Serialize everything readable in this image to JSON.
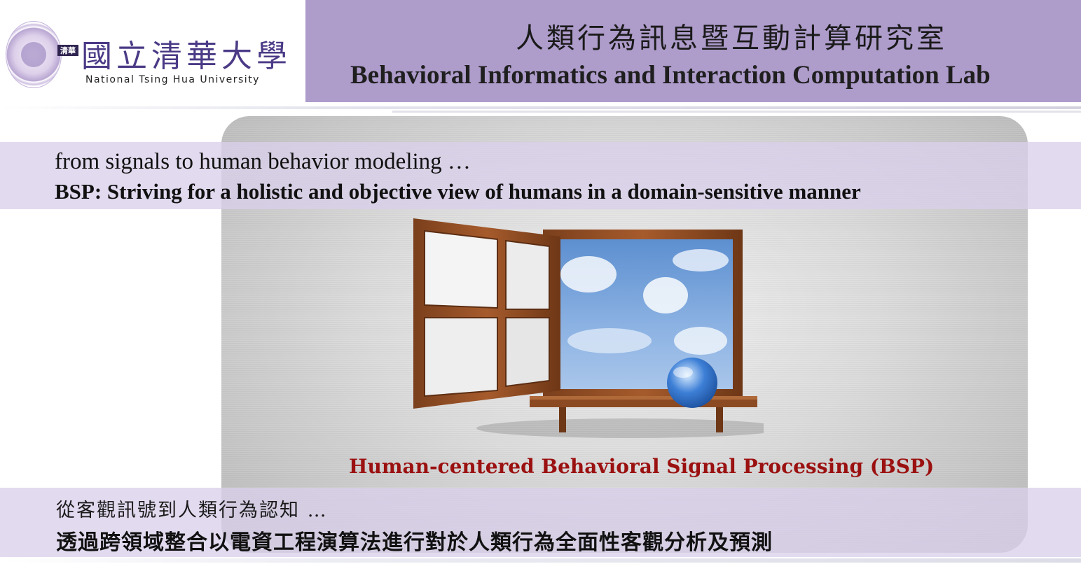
{
  "header": {
    "university_cn": "國立清華大學",
    "university_en": "National Tsing Hua University",
    "seal_mark": "清華",
    "lab_title_cn": "人類行為訊息暨互動計算研究室",
    "lab_title_en": "Behavioral Informatics and Interaction Computation Lab"
  },
  "slide": {
    "intro_line": "from signals to human behavior modeling …",
    "bsp_line": "BSP: Striving for a holistic and objective view of humans in a domain-sensitive manner",
    "caption": "Human-centered Behavioral Signal Processing (BSP)",
    "cn_intro": "從客觀訊號到人類行為認知 …",
    "cn_bold": "透過跨領域整合以電資工程演算法進行對於人類行為全面性客觀分析及預測"
  },
  "colors": {
    "banner": "#ae9ccb",
    "band": "#dad0ea",
    "caption": "#9b1010",
    "logo_text": "#4b3a86"
  },
  "icons": [
    "university-seal-icon",
    "open-window-illustration",
    "globe-icon"
  ]
}
